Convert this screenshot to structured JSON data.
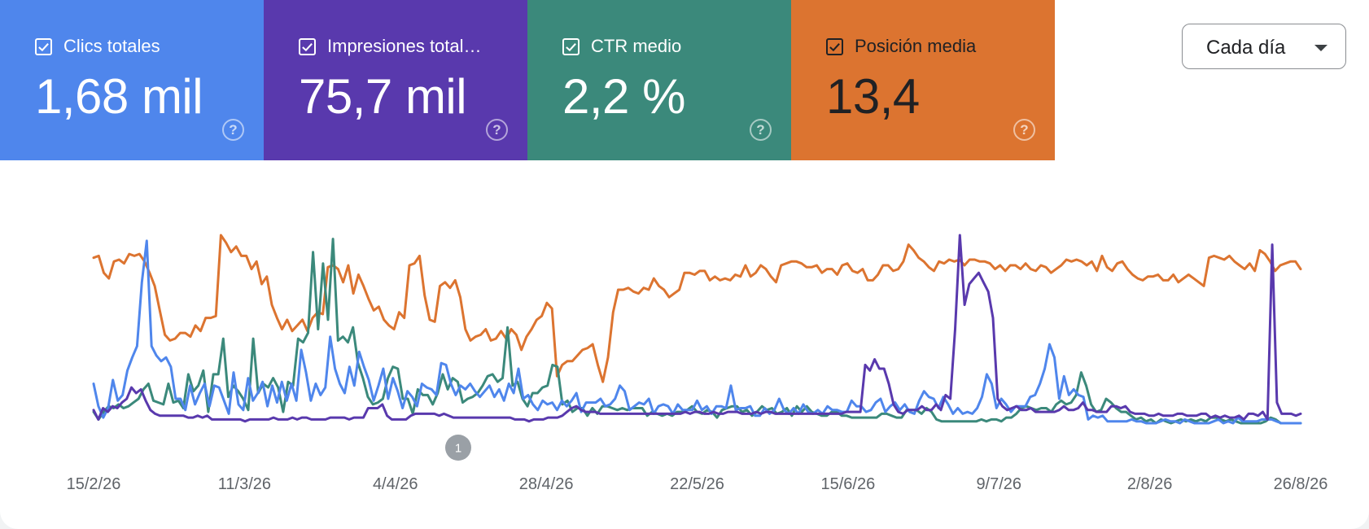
{
  "metrics": [
    {
      "label": "Clics totales",
      "value": "1,68 mil",
      "color": "#4f86ec",
      "text_color": "#ffffff",
      "checked": true
    },
    {
      "label": "Impresiones total…",
      "value": "75,7 mil",
      "color": "#5939ad",
      "text_color": "#ffffff",
      "checked": true
    },
    {
      "label": "CTR medio",
      "value": "2,2 %",
      "color": "#3b897b",
      "text_color": "#ffffff",
      "checked": true
    },
    {
      "label": "Posición media",
      "value": "13,4",
      "color": "#dc7430",
      "text_color": "#202124",
      "checked": true
    }
  ],
  "granularity": {
    "label": "Cada día"
  },
  "chart_data": {
    "type": "line",
    "x_ticks": [
      "15/2/26",
      "11/3/26",
      "4/4/26",
      "28/4/26",
      "22/5/26",
      "15/6/26",
      "9/7/26",
      "2/8/26",
      "26/8/26"
    ],
    "x_range": [
      "15/2/26",
      "26/8/26"
    ],
    "annotations": [
      {
        "label": "1",
        "date": "14/4/26"
      }
    ],
    "y_axis_visible": false,
    "grid": false,
    "series": [
      {
        "key": "position",
        "color": "#dc7430",
        "values": [
          0.88,
          0.89,
          0.8,
          0.77,
          0.86,
          0.87,
          0.85,
          0.9,
          0.89,
          0.9,
          0.86,
          0.8,
          0.73,
          0.6,
          0.47,
          0.44,
          0.45,
          0.48,
          0.48,
          0.46,
          0.52,
          0.49,
          0.56,
          0.56,
          0.57,
          1.0,
          0.96,
          0.91,
          0.94,
          0.89,
          0.89,
          0.82,
          0.86,
          0.74,
          0.78,
          0.63,
          0.56,
          0.5,
          0.55,
          0.49,
          0.52,
          0.55,
          0.49,
          0.56,
          0.59,
          0.58,
          0.83,
          0.84,
          0.82,
          0.75,
          0.84,
          0.69,
          0.79,
          0.73,
          0.66,
          0.6,
          0.62,
          0.55,
          0.52,
          0.5,
          0.59,
          0.56,
          0.84,
          0.85,
          0.89,
          0.68,
          0.55,
          0.54,
          0.73,
          0.75,
          0.72,
          0.76,
          0.67,
          0.5,
          0.44,
          0.46,
          0.47,
          0.5,
          0.44,
          0.45,
          0.49,
          0.45,
          0.5,
          0.47,
          0.39,
          0.46,
          0.5,
          0.55,
          0.57,
          0.64,
          0.61,
          0.25,
          0.31,
          0.33,
          0.33,
          0.36,
          0.39,
          0.4,
          0.42,
          0.31,
          0.22,
          0.35,
          0.59,
          0.71,
          0.71,
          0.72,
          0.7,
          0.69,
          0.72,
          0.71,
          0.77,
          0.73,
          0.71,
          0.67,
          0.69,
          0.71,
          0.8,
          0.8,
          0.79,
          0.81,
          0.81,
          0.76,
          0.78,
          0.76,
          0.77,
          0.76,
          0.79,
          0.78,
          0.84,
          0.78,
          0.8,
          0.84,
          0.82,
          0.78,
          0.75,
          0.84,
          0.85,
          0.86,
          0.86,
          0.85,
          0.83,
          0.83,
          0.84,
          0.8,
          0.82,
          0.82,
          0.79,
          0.84,
          0.85,
          0.81,
          0.8,
          0.82,
          0.76,
          0.76,
          0.79,
          0.84,
          0.84,
          0.81,
          0.82,
          0.86,
          0.95,
          0.92,
          0.88,
          0.86,
          0.83,
          0.81,
          0.86,
          0.85,
          0.87,
          0.86,
          0.87,
          0.84,
          0.87,
          0.87,
          0.86,
          0.86,
          0.85,
          0.82,
          0.84,
          0.81,
          0.84,
          0.84,
          0.82,
          0.85,
          0.82,
          0.81,
          0.84,
          0.83,
          0.8,
          0.82,
          0.84,
          0.87,
          0.86,
          0.87,
          0.86,
          0.84,
          0.86,
          0.81,
          0.89,
          0.83,
          0.81,
          0.85,
          0.86,
          0.82,
          0.79,
          0.77,
          0.76,
          0.78,
          0.78,
          0.79,
          0.76,
          0.76,
          0.79,
          0.75,
          0.77,
          0.79,
          0.77,
          0.75,
          0.73,
          0.88,
          0.89,
          0.88,
          0.87,
          0.89,
          0.86,
          0.84,
          0.82,
          0.85,
          0.81,
          0.92,
          0.9,
          0.86,
          0.81,
          0.84,
          0.85,
          0.86,
          0.86,
          0.82
        ]
      },
      {
        "key": "ctr",
        "color": "#3b897b",
        "values": [
          0.06,
          0.02,
          0.06,
          0.09,
          0.08,
          0.1,
          0.08,
          0.09,
          0.11,
          0.13,
          0.18,
          0.21,
          0.12,
          0.11,
          0.1,
          0.21,
          0.11,
          0.12,
          0.08,
          0.26,
          0.17,
          0.2,
          0.28,
          0.06,
          0.26,
          0.26,
          0.45,
          0.14,
          0.2,
          0.17,
          0.13,
          0.07,
          0.45,
          0.16,
          0.21,
          0.19,
          0.24,
          0.19,
          0.06,
          0.22,
          0.2,
          0.45,
          0.43,
          0.48,
          0.91,
          0.5,
          0.85,
          0.55,
          0.98,
          0.44,
          0.46,
          0.43,
          0.51,
          0.32,
          0.24,
          0.14,
          0.1,
          0.11,
          0.13,
          0.24,
          0.3,
          0.29,
          0.13,
          0.13,
          0.05,
          0.18,
          0.15,
          0.15,
          0.1,
          0.16,
          0.26,
          0.18,
          0.24,
          0.22,
          0.11,
          0.13,
          0.14,
          0.16,
          0.2,
          0.25,
          0.26,
          0.22,
          0.24,
          0.51,
          0.2,
          0.22,
          0.13,
          0.09,
          0.16,
          0.16,
          0.19,
          0.2,
          0.31,
          0.3,
          0.1,
          0.12,
          0.06,
          0.08,
          0.08,
          0.04,
          0.08,
          0.05,
          0.09,
          0.09,
          0.08,
          0.07,
          0.08,
          0.07,
          0.08,
          0.08,
          0.08,
          0.04,
          0.06,
          0.05,
          0.04,
          0.05,
          0.04,
          0.06,
          0.06,
          0.07,
          0.09,
          0.06,
          0.05,
          0.07,
          0.06,
          0.03,
          0.07,
          0.08,
          0.09,
          0.09,
          0.06,
          0.07,
          0.04,
          0.06,
          0.09,
          0.07,
          0.08,
          0.05,
          0.06,
          0.08,
          0.04,
          0.09,
          0.06,
          0.09,
          0.06,
          0.05,
          0.04,
          0.04,
          0.06,
          0.06,
          0.04,
          0.04,
          0.03,
          0.03,
          0.03,
          0.03,
          0.03,
          0.03,
          0.05,
          0.05,
          0.04,
          0.03,
          0.03,
          0.07,
          0.07,
          0.07,
          0.05,
          0.08,
          0.06,
          0.02,
          0.01,
          0.01,
          0.01,
          0.01,
          0.01,
          0.01,
          0.01,
          0.01,
          0.02,
          0.01,
          0.02,
          0.02,
          0.01,
          0.03,
          0.03,
          0.05,
          0.08,
          0.09,
          0.08,
          0.07,
          0.08,
          0.08,
          0.06,
          0.1,
          0.12,
          0.1,
          0.11,
          0.15,
          0.27,
          0.2,
          0.1,
          0.06,
          0.07,
          0.13,
          0.11,
          0.08,
          0.06,
          0.06,
          0.04,
          0.02,
          0.03,
          0.01,
          0.02,
          0.0,
          0.02,
          0.01,
          0.0,
          0.01,
          0.02,
          0.01,
          0.02,
          0.01,
          0.02,
          0.01,
          0.03,
          0.03,
          0.02,
          0.01,
          0.02,
          0.01,
          0.0,
          0.0,
          0.0,
          0.0,
          0.0,
          0.01,
          0.03,
          0.02,
          0.0,
          0.0,
          0.0,
          0.0,
          0.0
        ]
      },
      {
        "key": "clicks",
        "color": "#4f86ec",
        "values": [
          0.21,
          0.09,
          0.03,
          0.08,
          0.23,
          0.12,
          0.15,
          0.28,
          0.35,
          0.41,
          0.75,
          0.97,
          0.41,
          0.36,
          0.33,
          0.35,
          0.3,
          0.13,
          0.13,
          0.07,
          0.2,
          0.1,
          0.16,
          0.21,
          0.09,
          0.2,
          0.19,
          0.12,
          0.05,
          0.27,
          0.1,
          0.07,
          0.24,
          0.12,
          0.16,
          0.22,
          0.09,
          0.2,
          0.11,
          0.22,
          0.12,
          0.21,
          0.12,
          0.39,
          0.27,
          0.12,
          0.21,
          0.15,
          0.19,
          0.46,
          0.29,
          0.21,
          0.16,
          0.3,
          0.2,
          0.38,
          0.3,
          0.23,
          0.12,
          0.2,
          0.29,
          0.13,
          0.24,
          0.17,
          0.08,
          0.17,
          0.14,
          0.09,
          0.21,
          0.19,
          0.18,
          0.15,
          0.32,
          0.31,
          0.21,
          0.15,
          0.2,
          0.18,
          0.21,
          0.17,
          0.14,
          0.17,
          0.2,
          0.14,
          0.18,
          0.12,
          0.21,
          0.16,
          0.29,
          0.13,
          0.15,
          0.1,
          0.07,
          0.12,
          0.1,
          0.11,
          0.07,
          0.12,
          0.09,
          0.12,
          0.16,
          0.06,
          0.11,
          0.11,
          0.11,
          0.13,
          0.09,
          0.1,
          0.13,
          0.2,
          0.17,
          0.07,
          0.09,
          0.11,
          0.1,
          0.13,
          0.05,
          0.09,
          0.1,
          0.09,
          0.05,
          0.1,
          0.07,
          0.07,
          0.07,
          0.12,
          0.07,
          0.09,
          0.05,
          0.09,
          0.09,
          0.08,
          0.2,
          0.07,
          0.08,
          0.08,
          0.09,
          0.04,
          0.04,
          0.08,
          0.05,
          0.07,
          0.13,
          0.07,
          0.05,
          0.08,
          0.05,
          0.1,
          0.06,
          0.05,
          0.07,
          0.05,
          0.09,
          0.07,
          0.07,
          0.06,
          0.06,
          0.12,
          0.09,
          0.09,
          0.06,
          0.07,
          0.11,
          0.13,
          0.06,
          0.09,
          0.11,
          0.07,
          0.1,
          0.06,
          0.05,
          0.12,
          0.17,
          0.14,
          0.13,
          0.08,
          0.14,
          0.1,
          0.05,
          0.08,
          0.05,
          0.06,
          0.05,
          0.08,
          0.14,
          0.26,
          0.21,
          0.08,
          0.13,
          0.1,
          0.06,
          0.09,
          0.09,
          0.09,
          0.14,
          0.15,
          0.21,
          0.29,
          0.42,
          0.35,
          0.13,
          0.25,
          0.15,
          0.18,
          0.15,
          0.14,
          0.02,
          0.04,
          0.03,
          0.04,
          0.01,
          0.01,
          0.01,
          0.01,
          0.01,
          0.02,
          0.01,
          0.01,
          0.0,
          0.0,
          0.0,
          0.01,
          0.02,
          0.01,
          0.01,
          0.0,
          0.02,
          0.01,
          0.0,
          0.0,
          0.0,
          0.0,
          0.01,
          0.02,
          0.0,
          0.01,
          0.0,
          0.03,
          0.01,
          0.01,
          0.01,
          0.01,
          0.02,
          0.02,
          0.02,
          0.01,
          0.0,
          0.0,
          0.0,
          0.0,
          0.0
        ]
      },
      {
        "key": "impressions",
        "color": "#5939ad",
        "values": [
          0.07,
          0.02,
          0.08,
          0.06,
          0.09,
          0.08,
          0.11,
          0.13,
          0.19,
          0.16,
          0.18,
          0.12,
          0.07,
          0.05,
          0.04,
          0.04,
          0.04,
          0.04,
          0.04,
          0.04,
          0.03,
          0.03,
          0.04,
          0.03,
          0.04,
          0.02,
          0.02,
          0.02,
          0.02,
          0.02,
          0.02,
          0.02,
          0.01,
          0.02,
          0.02,
          0.02,
          0.02,
          0.02,
          0.03,
          0.02,
          0.02,
          0.02,
          0.03,
          0.02,
          0.03,
          0.03,
          0.02,
          0.02,
          0.02,
          0.02,
          0.03,
          0.03,
          0.03,
          0.03,
          0.02,
          0.03,
          0.03,
          0.03,
          0.08,
          0.08,
          0.08,
          0.1,
          0.04,
          0.02,
          0.02,
          0.02,
          0.02,
          0.04,
          0.05,
          0.05,
          0.05,
          0.05,
          0.05,
          0.04,
          0.05,
          0.04,
          0.03,
          0.03,
          0.03,
          0.03,
          0.03,
          0.03,
          0.03,
          0.03,
          0.03,
          0.03,
          0.03,
          0.03,
          0.03,
          0.02,
          0.02,
          0.02,
          0.01,
          0.02,
          0.02,
          0.02,
          0.03,
          0.03,
          0.03,
          0.04,
          0.06,
          0.08,
          0.09,
          0.07,
          0.06,
          0.06,
          0.06,
          0.05,
          0.05,
          0.05,
          0.05,
          0.05,
          0.05,
          0.05,
          0.05,
          0.05,
          0.05,
          0.05,
          0.05,
          0.05,
          0.05,
          0.05,
          0.05,
          0.05,
          0.05,
          0.06,
          0.05,
          0.06,
          0.06,
          0.05,
          0.05,
          0.06,
          0.05,
          0.05,
          0.06,
          0.06,
          0.06,
          0.05,
          0.05,
          0.05,
          0.06,
          0.05,
          0.06,
          0.06,
          0.05,
          0.05,
          0.05,
          0.05,
          0.05,
          0.05,
          0.05,
          0.05,
          0.05,
          0.05,
          0.05,
          0.05,
          0.05,
          0.05,
          0.05,
          0.06,
          0.06,
          0.06,
          0.06,
          0.31,
          0.28,
          0.34,
          0.29,
          0.29,
          0.21,
          0.1,
          0.06,
          0.05,
          0.07,
          0.07,
          0.07,
          0.09,
          0.07,
          0.07,
          0.1,
          0.07,
          0.15,
          0.13,
          0.5,
          1.0,
          0.63,
          0.74,
          0.77,
          0.8,
          0.75,
          0.7,
          0.56,
          0.13,
          0.09,
          0.07,
          0.08,
          0.09,
          0.07,
          0.07,
          0.08,
          0.06,
          0.06,
          0.06,
          0.06,
          0.06,
          0.07,
          0.09,
          0.07,
          0.07,
          0.08,
          0.11,
          0.07,
          0.07,
          0.06,
          0.06,
          0.06,
          0.09,
          0.09,
          0.08,
          0.09,
          0.06,
          0.05,
          0.05,
          0.05,
          0.04,
          0.04,
          0.05,
          0.04,
          0.04,
          0.04,
          0.05,
          0.05,
          0.04,
          0.04,
          0.04,
          0.05,
          0.05,
          0.03,
          0.04,
          0.03,
          0.04,
          0.03,
          0.03,
          0.04,
          0.02,
          0.05,
          0.05,
          0.04,
          0.06,
          0.02,
          0.95,
          0.11,
          0.05,
          0.05,
          0.05,
          0.04,
          0.05
        ]
      }
    ]
  }
}
